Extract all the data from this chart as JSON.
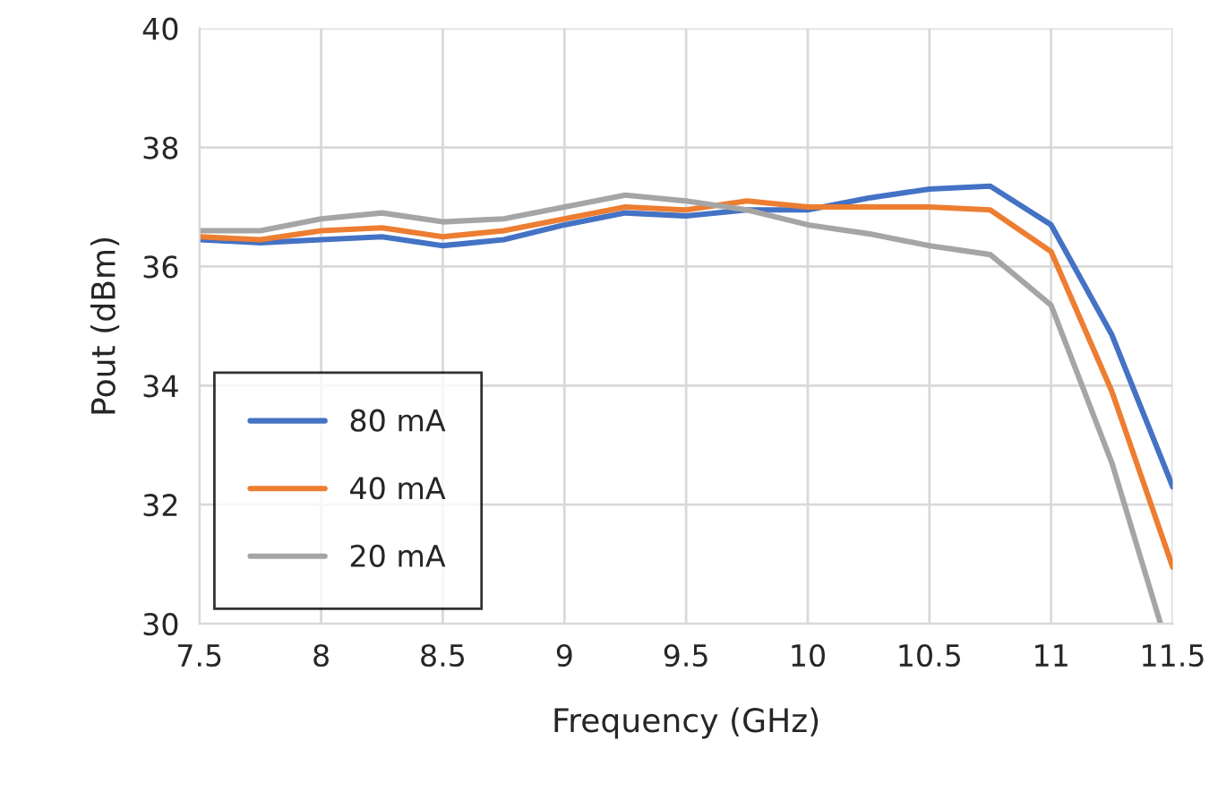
{
  "chart_data": {
    "type": "line",
    "xlabel": "Frequency (GHz)",
    "ylabel": "Pout (dBm)",
    "x": [
      7.5,
      7.75,
      8,
      8.25,
      8.5,
      8.75,
      9,
      9.25,
      9.5,
      9.75,
      10,
      10.25,
      10.5,
      10.75,
      11,
      11.25,
      11.5
    ],
    "series": [
      {
        "name": "80 mA",
        "color": "#4472c4",
        "values": [
          36.45,
          36.4,
          36.45,
          36.5,
          36.35,
          36.45,
          36.7,
          36.9,
          36.85,
          36.95,
          36.95,
          37.15,
          37.3,
          37.35,
          36.7,
          34.85,
          32.3
        ]
      },
      {
        "name": "40 mA",
        "color": "#ed7d31",
        "values": [
          36.5,
          36.45,
          36.6,
          36.65,
          36.5,
          36.6,
          36.8,
          37.0,
          36.95,
          37.1,
          37.0,
          37.0,
          37.0,
          36.95,
          36.25,
          33.9,
          30.95
        ]
      },
      {
        "name": "20 mA",
        "color": "#a5a5a5",
        "x": [
          7.5,
          7.75,
          8,
          8.25,
          8.5,
          8.75,
          9,
          9.25,
          9.5,
          9.75,
          10,
          10.25,
          10.5,
          10.75,
          11,
          11.25,
          11.45
        ],
        "values": [
          36.6,
          36.6,
          36.8,
          36.9,
          36.75,
          36.8,
          37.0,
          37.2,
          37.1,
          36.95,
          36.7,
          36.55,
          36.35,
          36.2,
          35.35,
          32.7,
          30.0
        ]
      }
    ],
    "xlim": [
      7.5,
      11.5
    ],
    "xticks": [
      7.5,
      8,
      8.5,
      9,
      9.5,
      10,
      10.5,
      11,
      11.5
    ],
    "ylim": [
      30,
      40
    ],
    "yticks": [
      30,
      32,
      34,
      36,
      38,
      40
    ],
    "grid": true,
    "legend": "bottom left",
    "marker": "none",
    "line_style": "solid"
  }
}
